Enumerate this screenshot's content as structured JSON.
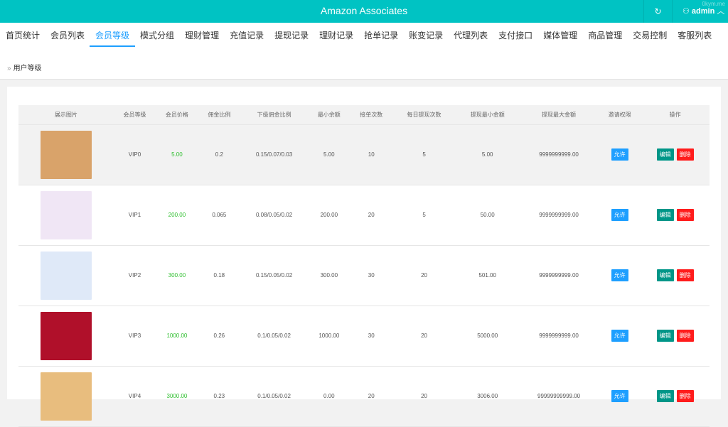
{
  "header": {
    "title": "Amazon Associates",
    "user": "admin",
    "watermark": "0kym.me"
  },
  "nav": {
    "tabs": [
      "首页统计",
      "会员列表",
      "会员等级",
      "模式分组",
      "理财管理",
      "充值记录",
      "提现记录",
      "理财记录",
      "抢单记录",
      "账变记录",
      "代理列表",
      "支付接口",
      "媒体管理",
      "商品管理",
      "交易控制",
      "客服列表"
    ],
    "active": 2
  },
  "breadcrumb": "用户等级",
  "table": {
    "headers": [
      "展示图片",
      "会员等级",
      "会员价格",
      "佣金比例",
      "下级佣金比例",
      "最小余额",
      "接单次数",
      "每日提现次数",
      "提现最小金额",
      "提现最大金额",
      "邀请权限",
      "操作"
    ],
    "rows": [
      {
        "level": "VIP0",
        "price": "5.00",
        "rate": "0.2",
        "sub": "0.15/0.07/0.03",
        "min": "5.00",
        "orders": "10",
        "daily": "5",
        "wmin": "5.00",
        "wmax": "9999999999.00",
        "color": "#d9a36a"
      },
      {
        "level": "VIP1",
        "price": "200.00",
        "rate": "0.065",
        "sub": "0.08/0.05/0.02",
        "min": "200.00",
        "orders": "20",
        "daily": "5",
        "wmin": "50.00",
        "wmax": "9999999999.00",
        "color": "#f0e6f5"
      },
      {
        "level": "VIP2",
        "price": "300.00",
        "rate": "0.18",
        "sub": "0.15/0.05/0.02",
        "min": "300.00",
        "orders": "30",
        "daily": "20",
        "wmin": "501.00",
        "wmax": "9999999999.00",
        "color": "#dfe9f8"
      },
      {
        "level": "VIP3",
        "price": "1000.00",
        "rate": "0.26",
        "sub": "0.1/0.05/0.02",
        "min": "1000.00",
        "orders": "30",
        "daily": "20",
        "wmin": "5000.00",
        "wmax": "9999999999.00",
        "color": "#b0102a"
      },
      {
        "level": "VIP4",
        "price": "3000.00",
        "rate": "0.23",
        "sub": "0.1/0.05/0.02",
        "min": "0.00",
        "orders": "20",
        "daily": "20",
        "wmin": "3006.00",
        "wmax": "99999999999.00",
        "color": "#e8bd7e"
      }
    ],
    "allow_label": "允许",
    "edit_label": "编辑",
    "delete_label": "删除"
  }
}
